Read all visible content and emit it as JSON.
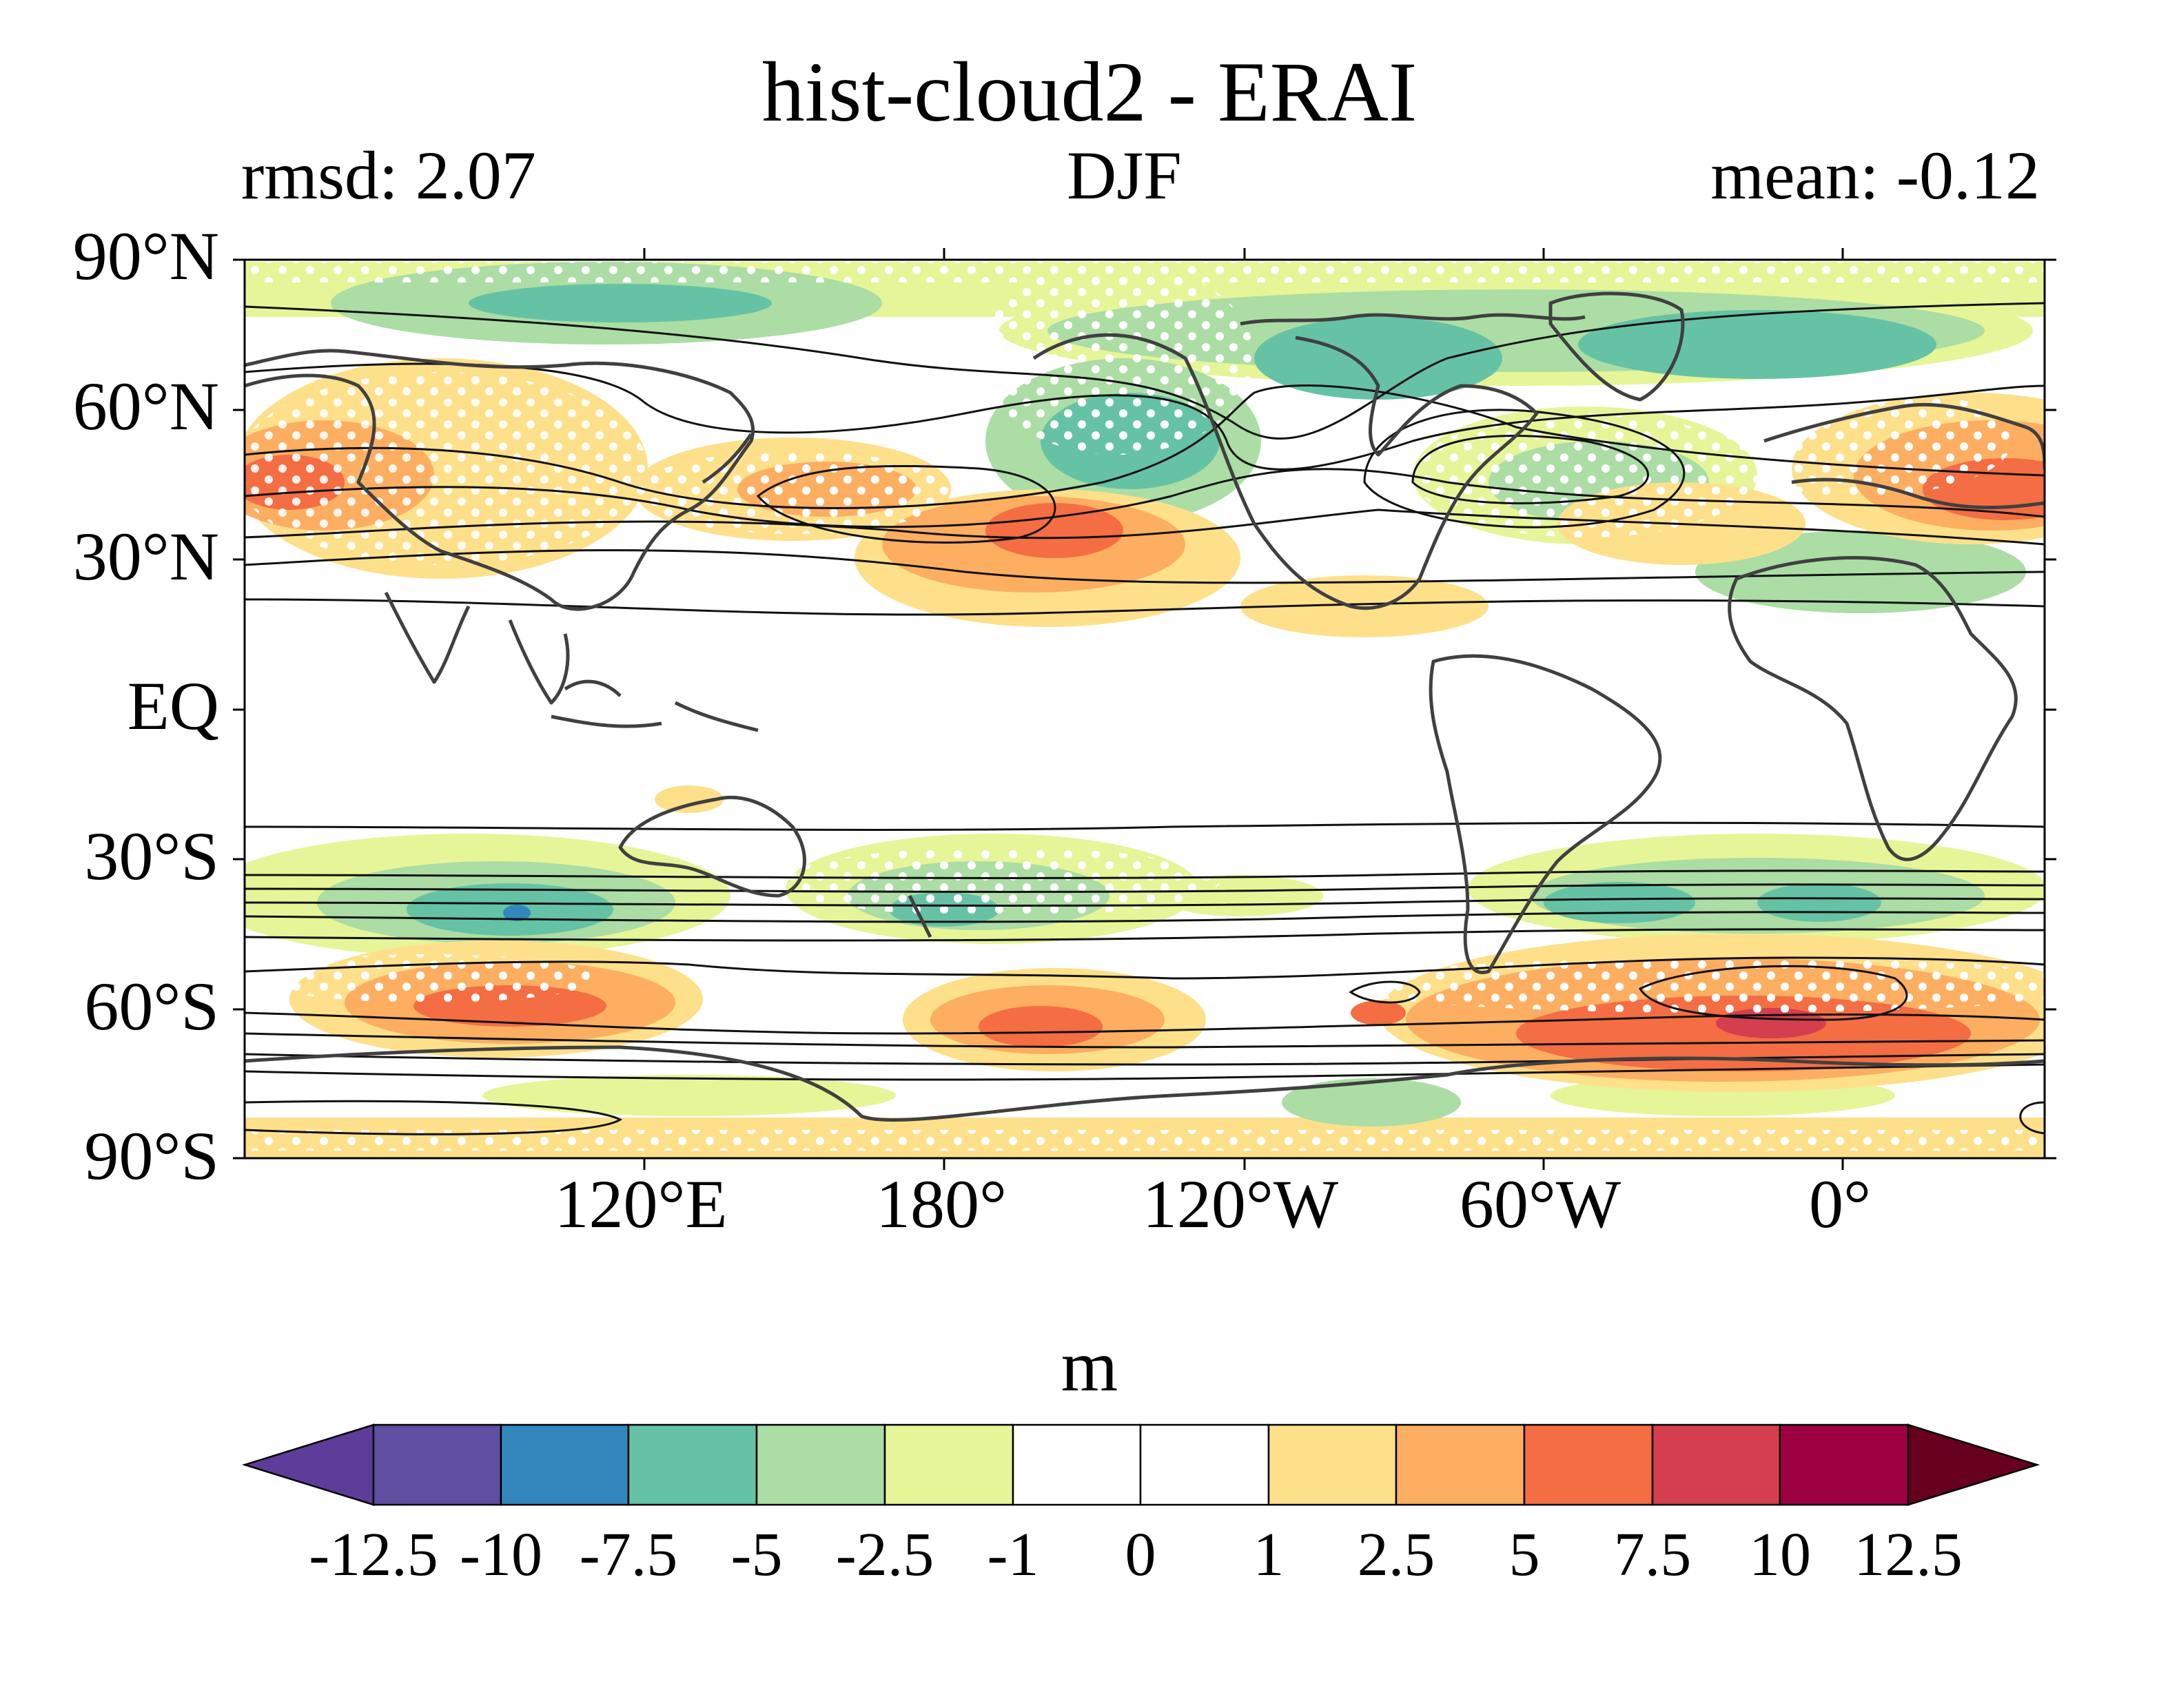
{
  "title": "hist-cloud2 - ERAI",
  "rmsd_label": "rmsd: 2.07",
  "season": "DJF",
  "mean_label": "mean: -0.12",
  "lat_labels": [
    "90°N",
    "60°N",
    "30°N",
    "EQ",
    "30°S",
    "60°S",
    "90°S"
  ],
  "lon_labels": [
    "120°E",
    "180°",
    "120°W",
    "60°W",
    "0°"
  ],
  "colorbar": {
    "unit": "m",
    "tick_labels": [
      "-12.5",
      "-10",
      "-7.5",
      "-5",
      "-2.5",
      "-1",
      "0",
      "1",
      "2.5",
      "5",
      "7.5",
      "10",
      "12.5"
    ],
    "colors": [
      "#5e3c99",
      "#5e4fa2",
      "#3288bd",
      "#66c2a5",
      "#abdda4",
      "#e6f598",
      "#ffffff",
      "#ffffff",
      "#fee08b",
      "#fdae61",
      "#f46d43",
      "#d53e4f",
      "#9e0142",
      "#67001f"
    ]
  },
  "colors": {
    "coast": "#404040",
    "contour": "#111111",
    "stipple": "#ffffff"
  }
}
